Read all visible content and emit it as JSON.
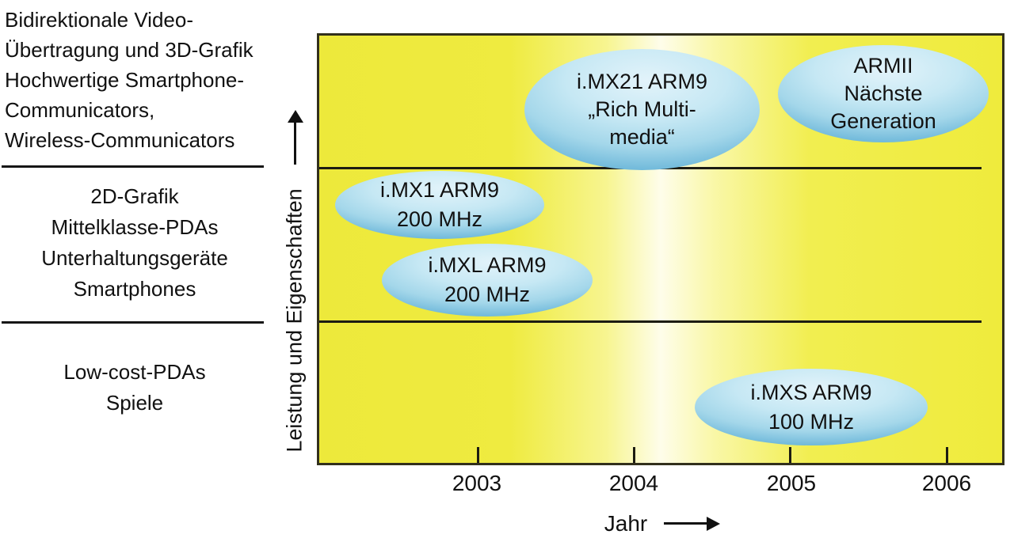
{
  "left_panel": {
    "segments": [
      {
        "lines": [
          "Bidirektionale Video-",
          "Übertragung und 3D-Grafik",
          "Hochwertige Smartphone-",
          "Communicators,",
          "Wireless-Communicators"
        ]
      },
      {
        "lines": [
          "2D-Grafik",
          "Mittelklasse-PDAs",
          "Unterhaltungsgeräte",
          "Smartphones"
        ]
      },
      {
        "lines": [
          "Low-cost-PDAs",
          "Spiele"
        ]
      }
    ]
  },
  "axes": {
    "y_label": "Leistung und Eigenschaften",
    "x_label": "Jahr",
    "x_ticks": [
      "2003",
      "2004",
      "2005",
      "2006"
    ]
  },
  "colors": {
    "plot_yellow": "#efeb3c",
    "plot_highlight": "#fefdea",
    "bubble_light": "#e2f3fa",
    "bubble_dark": "#459ec9",
    "line": "#1c1c12",
    "text": "#111111",
    "background": "#ffffff"
  },
  "chart_data": {
    "type": "scatter",
    "title": "",
    "xlabel": "Jahr",
    "ylabel": "Leistung und Eigenschaften",
    "x_ticks": [
      2003,
      2004,
      2005,
      2006
    ],
    "xlim": [
      2002.2,
      2006.4
    ],
    "grid": false,
    "bands": [
      {
        "tier": "high",
        "label": "Bidirektionale Video-Übertragung und 3D-Grafik, Hochwertige Smartphone-Communicators, Wireless-Communicators"
      },
      {
        "tier": "mid",
        "label": "2D-Grafik, Mittelklasse-PDAs, Unterhaltungsgeräte, Smartphones"
      },
      {
        "tier": "low",
        "label": "Low-cost-PDAs, Spiele"
      }
    ],
    "bubbles": [
      {
        "lines": [
          "i.MX21 ARM9",
          "„Rich Multi-",
          "media“"
        ],
        "x": 2004.0,
        "tier": "high"
      },
      {
        "lines": [
          "ARMII",
          "Nächste",
          "Generation"
        ],
        "x": 2005.6,
        "tier": "high"
      },
      {
        "lines": [
          "i.MX1 ARM9",
          "200 MHz"
        ],
        "x": 2002.8,
        "tier": "mid"
      },
      {
        "lines": [
          "i.MXL ARM9",
          "200 MHz"
        ],
        "x": 2003.1,
        "tier": "mid"
      },
      {
        "lines": [
          "i.MXS ARM9",
          "100 MHz"
        ],
        "x": 2005.1,
        "tier": "low"
      }
    ]
  }
}
